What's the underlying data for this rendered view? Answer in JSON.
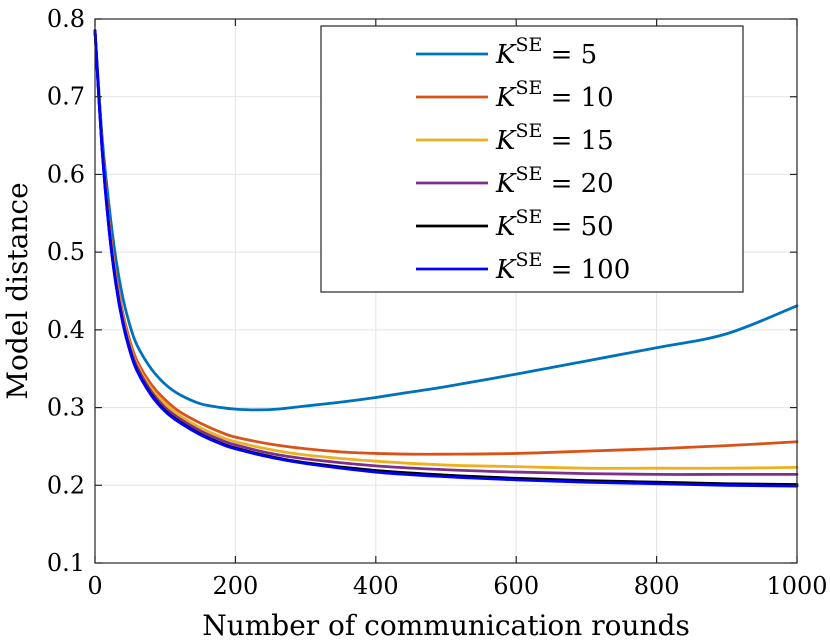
{
  "chart_data": {
    "type": "line",
    "title": "",
    "xlabel": "Number of communication rounds",
    "ylabel": "Model distance",
    "xlim": [
      0,
      1000
    ],
    "ylim": [
      0.1,
      0.8
    ],
    "xticks": [
      0,
      200,
      400,
      600,
      800,
      1000
    ],
    "yticks": [
      0.1,
      0.2,
      0.3,
      0.4,
      0.5,
      0.6,
      0.7,
      0.8
    ],
    "xtick_labels": [
      "0",
      "200",
      "400",
      "600",
      "800",
      "1000"
    ],
    "ytick_labels": [
      "0.1",
      "0.2",
      "0.3",
      "0.4",
      "0.5",
      "0.6",
      "0.7",
      "0.8"
    ],
    "grid": true,
    "legend_position": "top-right",
    "series": [
      {
        "name": "K^SE = 5",
        "symbol": "K",
        "superscript": "SE",
        "value_text": "= 5",
        "color": "#0072BD",
        "x": [
          0,
          10,
          20,
          30,
          40,
          50,
          60,
          80,
          100,
          120,
          150,
          180,
          200,
          230,
          260,
          300,
          350,
          400,
          450,
          500,
          600,
          700,
          800,
          900,
          1000
        ],
        "y": [
          0.785,
          0.65,
          0.56,
          0.49,
          0.44,
          0.405,
          0.38,
          0.35,
          0.33,
          0.317,
          0.305,
          0.3,
          0.298,
          0.297,
          0.298,
          0.302,
          0.307,
          0.313,
          0.32,
          0.327,
          0.343,
          0.36,
          0.377,
          0.395,
          0.431
        ]
      },
      {
        "name": "K^SE = 10",
        "symbol": "K",
        "superscript": "SE",
        "value_text": "= 10",
        "color": "#D95319",
        "x": [
          0,
          10,
          20,
          30,
          40,
          50,
          60,
          80,
          100,
          120,
          150,
          180,
          200,
          250,
          300,
          350,
          400,
          450,
          500,
          600,
          700,
          800,
          900,
          1000
        ],
        "y": [
          0.785,
          0.64,
          0.54,
          0.47,
          0.42,
          0.385,
          0.36,
          0.33,
          0.31,
          0.295,
          0.28,
          0.268,
          0.262,
          0.253,
          0.247,
          0.243,
          0.241,
          0.24,
          0.24,
          0.241,
          0.244,
          0.247,
          0.251,
          0.256
        ]
      },
      {
        "name": "K^SE = 15",
        "symbol": "K",
        "superscript": "SE",
        "value_text": "= 15",
        "color": "#EDB120",
        "x": [
          0,
          10,
          20,
          30,
          40,
          50,
          60,
          80,
          100,
          120,
          150,
          180,
          200,
          250,
          300,
          400,
          500,
          600,
          700,
          800,
          900,
          1000
        ],
        "y": [
          0.785,
          0.638,
          0.535,
          0.465,
          0.415,
          0.38,
          0.355,
          0.325,
          0.305,
          0.29,
          0.274,
          0.262,
          0.256,
          0.246,
          0.239,
          0.231,
          0.226,
          0.224,
          0.222,
          0.222,
          0.222,
          0.223
        ]
      },
      {
        "name": "K^SE = 20",
        "symbol": "K",
        "superscript": "SE",
        "value_text": "= 20",
        "color": "#7E2F8E",
        "x": [
          0,
          10,
          20,
          30,
          40,
          50,
          60,
          80,
          100,
          120,
          150,
          180,
          200,
          250,
          300,
          400,
          500,
          600,
          700,
          800,
          900,
          1000
        ],
        "y": [
          0.785,
          0.636,
          0.533,
          0.462,
          0.412,
          0.377,
          0.352,
          0.321,
          0.3,
          0.286,
          0.27,
          0.258,
          0.252,
          0.241,
          0.234,
          0.225,
          0.22,
          0.217,
          0.215,
          0.214,
          0.214,
          0.214
        ]
      },
      {
        "name": "K^SE = 50",
        "symbol": "K",
        "superscript": "SE",
        "value_text": "= 50",
        "color": "#000000",
        "x": [
          0,
          10,
          20,
          30,
          40,
          50,
          60,
          80,
          100,
          120,
          150,
          180,
          200,
          250,
          300,
          400,
          500,
          600,
          700,
          800,
          900,
          1000
        ],
        "y": [
          0.785,
          0.634,
          0.53,
          0.458,
          0.408,
          0.373,
          0.348,
          0.317,
          0.296,
          0.282,
          0.266,
          0.254,
          0.248,
          0.237,
          0.229,
          0.219,
          0.213,
          0.209,
          0.206,
          0.204,
          0.202,
          0.201
        ]
      },
      {
        "name": "K^SE = 100",
        "symbol": "K",
        "superscript": "SE",
        "value_text": "= 100",
        "color": "#0000FF",
        "x": [
          0,
          10,
          20,
          30,
          40,
          50,
          60,
          80,
          100,
          120,
          150,
          180,
          200,
          250,
          300,
          400,
          500,
          600,
          700,
          800,
          900,
          1000
        ],
        "y": [
          0.785,
          0.633,
          0.529,
          0.457,
          0.407,
          0.372,
          0.347,
          0.316,
          0.295,
          0.281,
          0.265,
          0.253,
          0.247,
          0.236,
          0.228,
          0.217,
          0.211,
          0.207,
          0.204,
          0.202,
          0.2,
          0.199
        ]
      }
    ]
  }
}
